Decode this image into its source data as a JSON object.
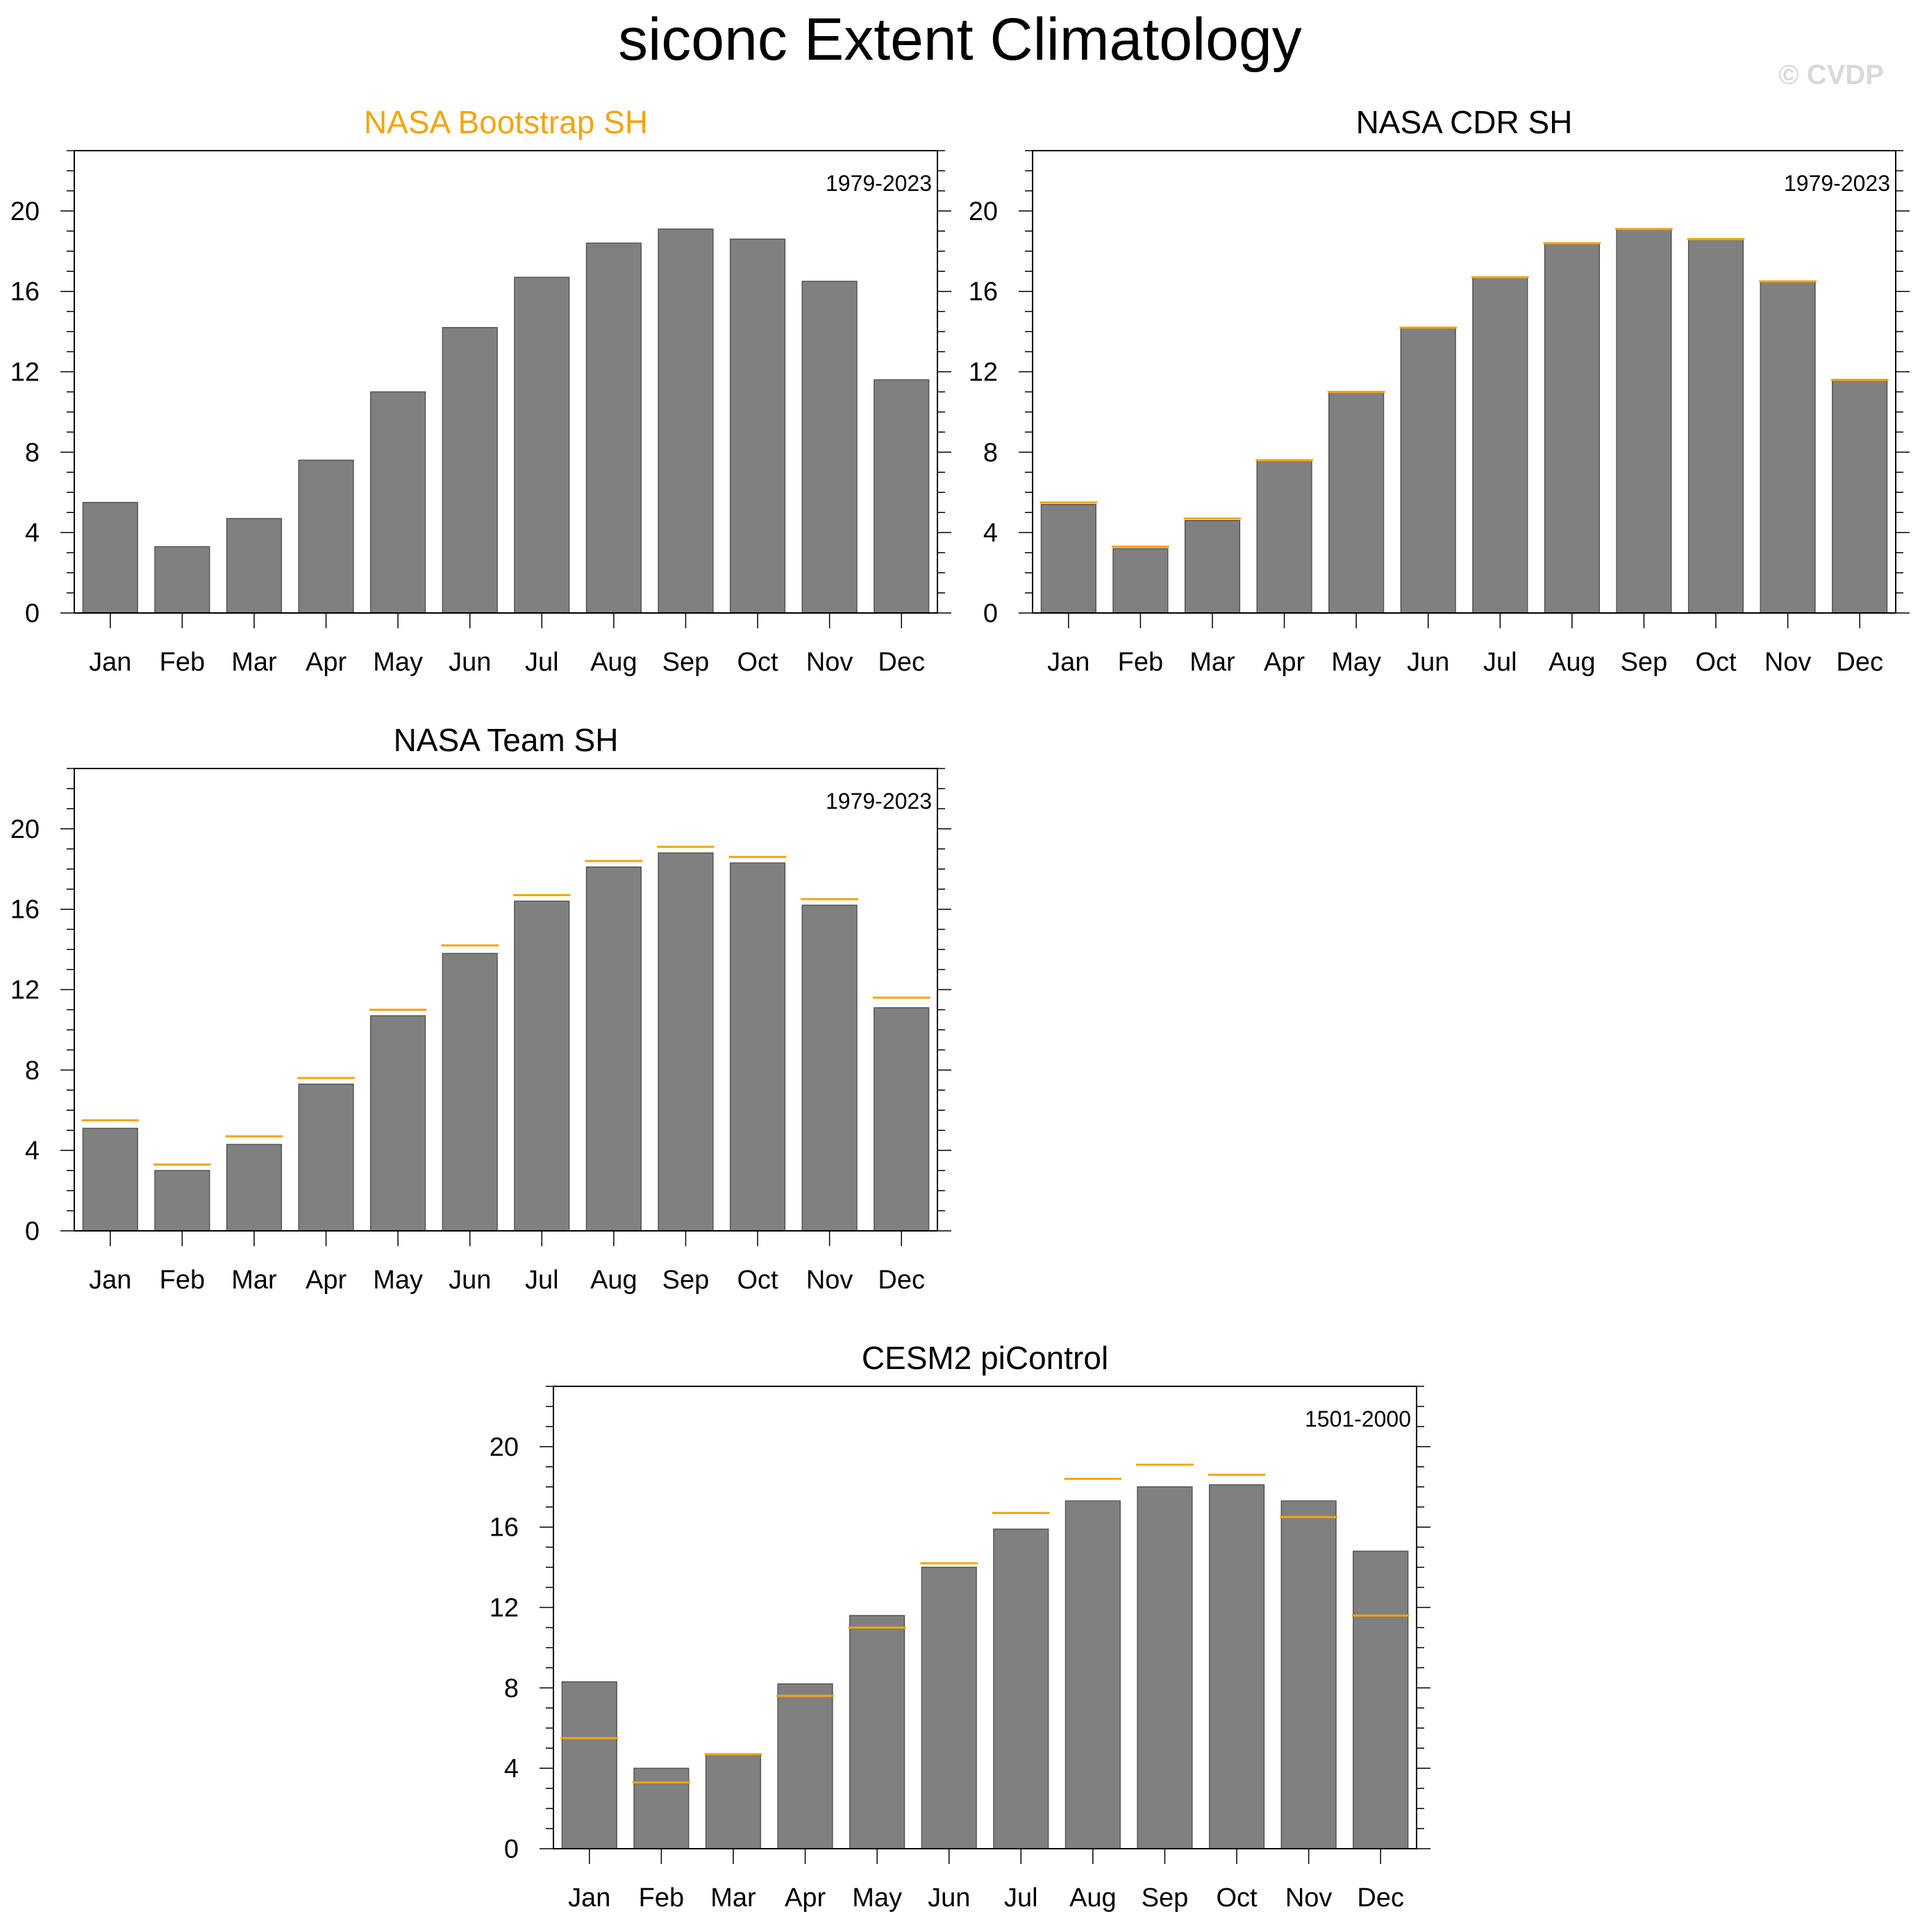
{
  "title": "siconc Extent Climatology",
  "watermark": "© CVDP",
  "colors": {
    "bar": "#808080",
    "bar_edge": "#555555",
    "reference_line": "#f5a40c",
    "highlight_title": "#f5a40c",
    "axis": "#000000"
  },
  "chart_data": [
    {
      "type": "bar",
      "title": "NASA Bootstrap SH",
      "title_highlight": true,
      "period": "1979-2023",
      "categories": [
        "Jan",
        "Feb",
        "Mar",
        "Apr",
        "May",
        "Jun",
        "Jul",
        "Aug",
        "Sep",
        "Oct",
        "Nov",
        "Dec"
      ],
      "values": [
        5.5,
        3.3,
        4.7,
        7.6,
        11.0,
        14.2,
        16.7,
        18.4,
        19.1,
        18.6,
        16.5,
        11.6
      ],
      "reference_line": null,
      "ylim": [
        0,
        23
      ],
      "yticks": [
        0,
        4,
        8,
        12,
        16,
        20
      ],
      "xlabel": "",
      "ylabel": ""
    },
    {
      "type": "bar",
      "title": "NASA CDR SH",
      "title_highlight": false,
      "period": "1979-2023",
      "categories": [
        "Jan",
        "Feb",
        "Mar",
        "Apr",
        "May",
        "Jun",
        "Jul",
        "Aug",
        "Sep",
        "Oct",
        "Nov",
        "Dec"
      ],
      "values": [
        5.4,
        3.2,
        4.6,
        7.6,
        11.0,
        14.2,
        16.7,
        18.4,
        19.1,
        18.6,
        16.5,
        11.6
      ],
      "reference_line": [
        5.5,
        3.3,
        4.7,
        7.6,
        11.0,
        14.2,
        16.7,
        18.4,
        19.1,
        18.6,
        16.5,
        11.6
      ],
      "ylim": [
        0,
        23
      ],
      "yticks": [
        0,
        4,
        8,
        12,
        16,
        20
      ],
      "xlabel": "",
      "ylabel": ""
    },
    {
      "type": "bar",
      "title": "NASA Team SH",
      "title_highlight": false,
      "period": "1979-2023",
      "categories": [
        "Jan",
        "Feb",
        "Mar",
        "Apr",
        "May",
        "Jun",
        "Jul",
        "Aug",
        "Sep",
        "Oct",
        "Nov",
        "Dec"
      ],
      "values": [
        5.1,
        3.0,
        4.3,
        7.3,
        10.7,
        13.8,
        16.4,
        18.1,
        18.8,
        18.3,
        16.2,
        11.1
      ],
      "reference_line": [
        5.5,
        3.3,
        4.7,
        7.6,
        11.0,
        14.2,
        16.7,
        18.4,
        19.1,
        18.6,
        16.5,
        11.6
      ],
      "ylim": [
        0,
        23
      ],
      "yticks": [
        0,
        4,
        8,
        12,
        16,
        20
      ],
      "xlabel": "",
      "ylabel": ""
    },
    {
      "type": "bar",
      "title": "CESM2 piControl",
      "title_highlight": false,
      "period": "1501-2000",
      "categories": [
        "Jan",
        "Feb",
        "Mar",
        "Apr",
        "May",
        "Jun",
        "Jul",
        "Aug",
        "Sep",
        "Oct",
        "Nov",
        "Dec"
      ],
      "values": [
        8.3,
        4.0,
        4.7,
        8.2,
        11.6,
        14.0,
        15.9,
        17.3,
        18.0,
        18.1,
        17.3,
        14.8
      ],
      "reference_line": [
        5.5,
        3.3,
        4.7,
        7.6,
        11.0,
        14.2,
        16.7,
        18.4,
        19.1,
        18.6,
        16.5,
        11.6
      ],
      "ylim": [
        0,
        23
      ],
      "yticks": [
        0,
        4,
        8,
        12,
        16,
        20
      ],
      "xlabel": "",
      "ylabel": ""
    }
  ]
}
